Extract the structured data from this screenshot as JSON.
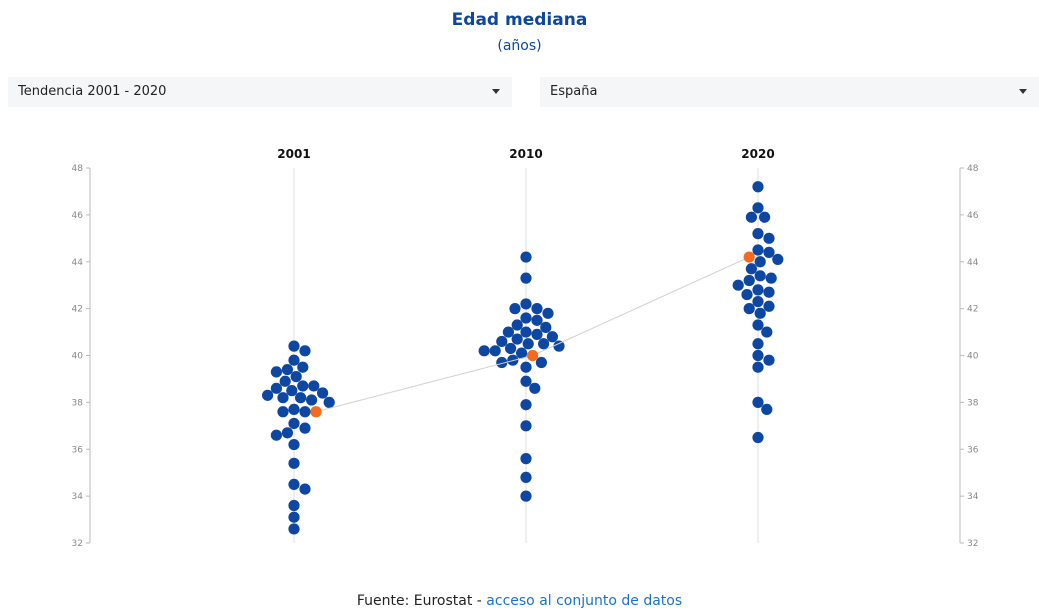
{
  "header": {
    "title": "Edad mediana",
    "subtitle": "(años)"
  },
  "controls": {
    "period": "Tendencia 2001 - 2020",
    "country": "España"
  },
  "footer": {
    "source": "Fuente: Eurostat -",
    "link": "acceso al conjunto de datos"
  },
  "colors": {
    "point": "#0E47A1",
    "highlight": "#F26B21",
    "title": "#0E47A1"
  },
  "chart_data": {
    "type": "scatter",
    "ylim": [
      32,
      48
    ],
    "yticks": [
      "32",
      "34",
      "36",
      "38",
      "40",
      "42",
      "44",
      "46",
      "48"
    ],
    "categories": [
      "2001",
      "2010",
      "2020"
    ],
    "highlight": {
      "name": "España",
      "values": [
        37.6,
        40.0,
        44.2
      ]
    },
    "points": [
      [
        40.4,
        40.2,
        39.8,
        39.5,
        39.4,
        39.3,
        39.1,
        38.9,
        38.7,
        38.7,
        38.6,
        38.5,
        38.4,
        38.3,
        38.2,
        38.2,
        38.1,
        38.0,
        37.7,
        37.6,
        37.6,
        37.1,
        36.9,
        36.7,
        36.6,
        36.2,
        35.4,
        34.5,
        34.3,
        33.6,
        33.1,
        32.6
      ],
      [
        44.2,
        43.3,
        42.2,
        42.0,
        42.0,
        41.8,
        41.6,
        41.5,
        41.3,
        41.2,
        41.0,
        41.0,
        40.9,
        40.8,
        40.7,
        40.6,
        40.5,
        40.5,
        40.4,
        40.3,
        40.2,
        40.2,
        40.1,
        39.8,
        39.7,
        39.7,
        39.5,
        38.9,
        38.6,
        37.9,
        37.0,
        35.6,
        34.8,
        34.0
      ],
      [
        47.2,
        46.3,
        45.9,
        45.9,
        45.2,
        45.0,
        44.5,
        44.4,
        44.1,
        44.0,
        43.7,
        43.4,
        43.3,
        43.2,
        43.0,
        42.8,
        42.7,
        42.6,
        42.3,
        42.1,
        42.0,
        41.8,
        41.3,
        41.0,
        40.5,
        40.0,
        39.8,
        39.5,
        38.0,
        37.7,
        36.5
      ]
    ]
  }
}
